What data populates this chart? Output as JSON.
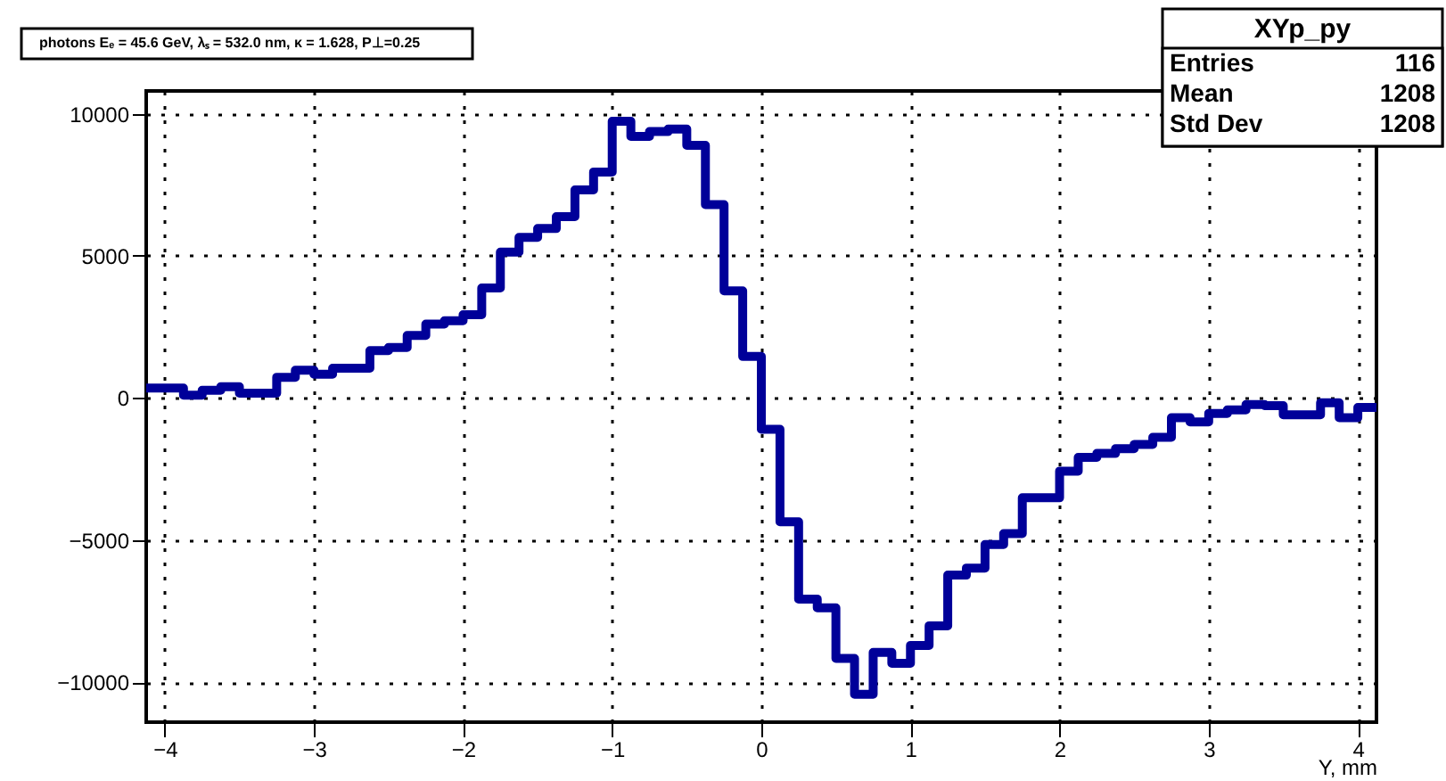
{
  "chart_data": {
    "type": "histogram",
    "title": "photons Eₑ = 45.6 GeV, λₛ = 532.0 nm, κ = 1.628, P⊥=0.25",
    "xlabel": "Y, mm",
    "annotations": [
      "XYp_py",
      "Entries",
      "116",
      "Mean",
      "1208",
      "Std Dev",
      "1208"
    ],
    "color": "#000099",
    "bins": [
      -4.125,
      -4.0,
      -3.875,
      -3.75,
      -3.625,
      -3.5,
      -3.375,
      -3.25,
      -3.125,
      -3.0,
      -2.875,
      -2.75,
      -2.625,
      -2.5,
      -2.375,
      -2.25,
      -2.125,
      -2.0,
      -1.875,
      -1.75,
      -1.625,
      -1.5,
      -1.375,
      -1.25,
      -1.125,
      -1.0,
      -0.875,
      -0.75,
      -0.625,
      -0.5,
      -0.375,
      -0.25,
      -0.125,
      0.0,
      0.125,
      0.25,
      0.375,
      0.5,
      0.625,
      0.75,
      0.875,
      1.0,
      1.125,
      1.25,
      1.375,
      1.5,
      1.625,
      1.75,
      1.875,
      2.0,
      2.125,
      2.25,
      2.375,
      2.5,
      2.625,
      2.75,
      2.875,
      3.0,
      3.125,
      3.25,
      3.375,
      3.5,
      3.625,
      3.75,
      3.875,
      4.0,
      4.125
    ],
    "values": [
      350,
      350,
      100,
      270,
      400,
      170,
      170,
      730,
      980,
      840,
      1050,
      1050,
      1670,
      1780,
      2200,
      2600,
      2720,
      2930,
      3870,
      5130,
      5650,
      5960,
      6380,
      7320,
      7950,
      9730,
      9200,
      9370,
      9460,
      8890,
      6800,
      3770,
      1460,
      -1100,
      -4350,
      -7070,
      -7380,
      -9160,
      -10420,
      -8950,
      -9330,
      -8700,
      -8010,
      -6230,
      -5980,
      -5150,
      -4770,
      -3510,
      -3510,
      -2570,
      -2090,
      -1950,
      -1780,
      -1630,
      -1380,
      -690,
      -840,
      -540,
      -420,
      -230,
      -270,
      -590,
      -590,
      -170,
      -690,
      -330
    ],
    "xlim": [
      -4.125,
      4.125
    ],
    "ylim": [
      -11400,
      10800
    ],
    "xticks": [
      -4,
      -3,
      -2,
      -1,
      0,
      1,
      2,
      3,
      4
    ],
    "yticks": [
      -10000,
      -5000,
      0,
      5000,
      10000
    ],
    "grid": true
  }
}
